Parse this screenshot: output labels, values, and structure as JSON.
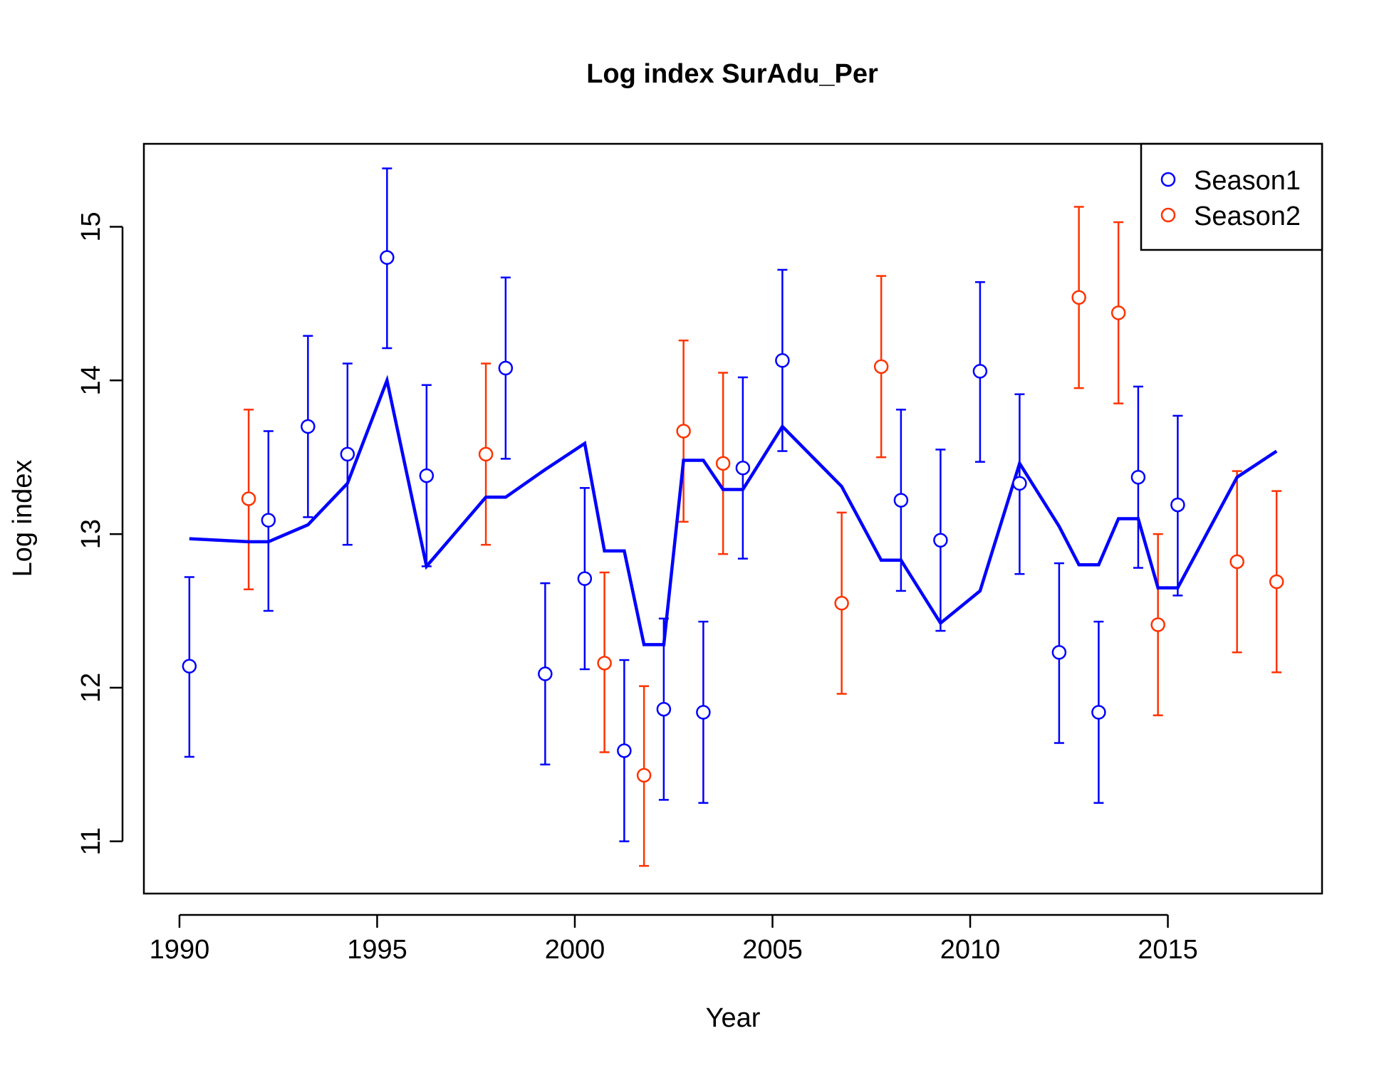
{
  "chart_data": {
    "type": "scatter",
    "title": "Log index SurAdu_Per",
    "xlabel": "Year",
    "ylabel": "Log index",
    "xlim": [
      1989.1,
      2018.9
    ],
    "ylim": [
      10.66,
      15.54
    ],
    "xticks": [
      "1990",
      "1995",
      "2000",
      "2005",
      "2010",
      "2015"
    ],
    "yticks": [
      "11",
      "12",
      "13",
      "14",
      "15"
    ],
    "grid": false,
    "legend_position": "top-right",
    "series": [
      {
        "name": "Season1",
        "color": "#0000ff",
        "points": [
          {
            "x": 1990.25,
            "y": 12.14,
            "lo": 11.55,
            "hi": 12.72
          },
          {
            "x": 1992.25,
            "y": 13.09,
            "lo": 12.5,
            "hi": 13.67
          },
          {
            "x": 1993.25,
            "y": 13.7,
            "lo": 13.11,
            "hi": 14.29
          },
          {
            "x": 1994.25,
            "y": 13.52,
            "lo": 12.93,
            "hi": 14.11
          },
          {
            "x": 1995.25,
            "y": 14.8,
            "lo": 14.21,
            "hi": 15.38
          },
          {
            "x": 1996.25,
            "y": 13.38,
            "lo": 12.79,
            "hi": 13.97
          },
          {
            "x": 1998.25,
            "y": 14.08,
            "lo": 13.49,
            "hi": 14.67
          },
          {
            "x": 1999.25,
            "y": 12.09,
            "lo": 11.5,
            "hi": 12.68
          },
          {
            "x": 2000.25,
            "y": 12.71,
            "lo": 12.12,
            "hi": 13.3
          },
          {
            "x": 2001.25,
            "y": 11.59,
            "lo": 11.0,
            "hi": 12.18
          },
          {
            "x": 2002.25,
            "y": 11.86,
            "lo": 11.27,
            "hi": 12.45
          },
          {
            "x": 2003.25,
            "y": 11.84,
            "lo": 11.25,
            "hi": 12.43
          },
          {
            "x": 2004.25,
            "y": 13.43,
            "lo": 12.84,
            "hi": 14.02
          },
          {
            "x": 2005.25,
            "y": 14.13,
            "lo": 13.54,
            "hi": 14.72
          },
          {
            "x": 2008.25,
            "y": 13.22,
            "lo": 12.63,
            "hi": 13.81
          },
          {
            "x": 2009.25,
            "y": 12.96,
            "lo": 12.37,
            "hi": 13.55
          },
          {
            "x": 2010.25,
            "y": 14.06,
            "lo": 13.47,
            "hi": 14.64
          },
          {
            "x": 2011.25,
            "y": 13.33,
            "lo": 12.74,
            "hi": 13.91
          },
          {
            "x": 2012.25,
            "y": 12.23,
            "lo": 11.64,
            "hi": 12.81
          },
          {
            "x": 2013.25,
            "y": 11.84,
            "lo": 11.25,
            "hi": 12.43
          },
          {
            "x": 2014.25,
            "y": 13.37,
            "lo": 12.78,
            "hi": 13.96
          },
          {
            "x": 2015.25,
            "y": 13.19,
            "lo": 12.6,
            "hi": 13.77
          }
        ]
      },
      {
        "name": "Season2",
        "color": "#ff3300",
        "points": [
          {
            "x": 1991.75,
            "y": 13.23,
            "lo": 12.64,
            "hi": 13.81
          },
          {
            "x": 1997.75,
            "y": 13.52,
            "lo": 12.93,
            "hi": 14.11
          },
          {
            "x": 2000.75,
            "y": 12.16,
            "lo": 11.58,
            "hi": 12.75
          },
          {
            "x": 2001.75,
            "y": 11.43,
            "lo": 10.84,
            "hi": 12.01
          },
          {
            "x": 2002.75,
            "y": 13.67,
            "lo": 13.08,
            "hi": 14.26
          },
          {
            "x": 2003.75,
            "y": 13.46,
            "lo": 12.87,
            "hi": 14.05
          },
          {
            "x": 2006.75,
            "y": 12.55,
            "lo": 11.96,
            "hi": 13.14
          },
          {
            "x": 2007.75,
            "y": 14.09,
            "lo": 13.5,
            "hi": 14.68
          },
          {
            "x": 2012.75,
            "y": 14.54,
            "lo": 13.95,
            "hi": 15.13
          },
          {
            "x": 2013.75,
            "y": 14.44,
            "lo": 13.85,
            "hi": 15.03
          },
          {
            "x": 2014.75,
            "y": 12.41,
            "lo": 11.82,
            "hi": 13.0
          },
          {
            "x": 2016.75,
            "y": 12.82,
            "lo": 12.23,
            "hi": 13.41
          },
          {
            "x": 2017.75,
            "y": 12.69,
            "lo": 12.1,
            "hi": 13.28
          }
        ]
      }
    ],
    "fit_line": {
      "color": "#0000ff",
      "points": [
        [
          1990.25,
          12.97
        ],
        [
          1991.75,
          12.95
        ],
        [
          1992.25,
          12.95
        ],
        [
          1993.25,
          13.06
        ],
        [
          1994.25,
          13.33
        ],
        [
          1995.25,
          14.0
        ],
        [
          1996.25,
          12.79
        ],
        [
          1997.75,
          13.24
        ],
        [
          1998.25,
          13.24
        ],
        [
          1999.25,
          13.42
        ],
        [
          2000.25,
          13.59
        ],
        [
          2000.75,
          12.89
        ],
        [
          2001.25,
          12.89
        ],
        [
          2001.75,
          12.28
        ],
        [
          2002.25,
          12.28
        ],
        [
          2002.75,
          13.48
        ],
        [
          2003.25,
          13.48
        ],
        [
          2003.75,
          13.29
        ],
        [
          2004.25,
          13.29
        ],
        [
          2005.25,
          13.7
        ],
        [
          2006.75,
          13.31
        ],
        [
          2007.75,
          12.83
        ],
        [
          2008.25,
          12.83
        ],
        [
          2009.25,
          12.42
        ],
        [
          2010.25,
          12.63
        ],
        [
          2011.25,
          13.46
        ],
        [
          2012.25,
          13.05
        ],
        [
          2012.75,
          12.8
        ],
        [
          2013.25,
          12.8
        ],
        [
          2013.75,
          13.1
        ],
        [
          2014.25,
          13.1
        ],
        [
          2014.75,
          12.65
        ],
        [
          2015.25,
          12.65
        ],
        [
          2016.75,
          13.37
        ],
        [
          2017.75,
          13.54
        ]
      ]
    }
  }
}
